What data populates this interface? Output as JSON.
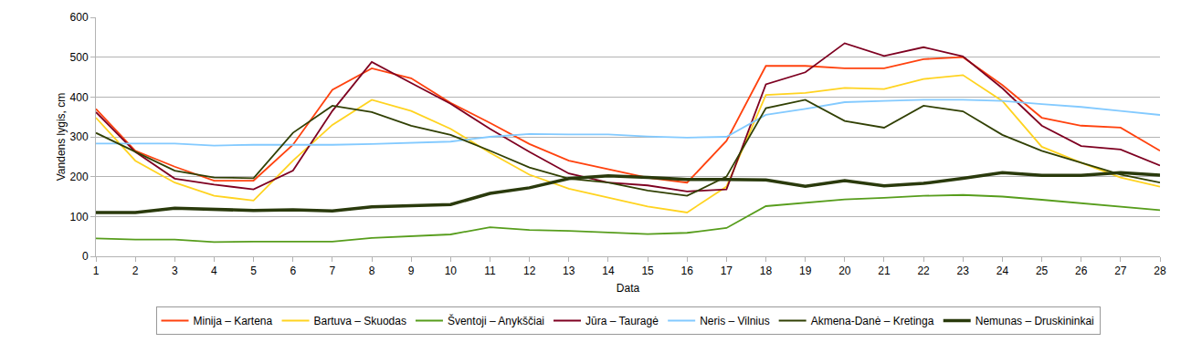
{
  "chart_data": {
    "type": "line",
    "x_label": "Data",
    "y_label": "Vandens lygis, cm",
    "x": [
      1,
      2,
      3,
      4,
      5,
      6,
      7,
      8,
      9,
      10,
      11,
      12,
      13,
      14,
      15,
      16,
      17,
      18,
      19,
      20,
      21,
      22,
      23,
      24,
      25,
      26,
      27,
      28
    ],
    "xlim": [
      1,
      28
    ],
    "xticks": [
      1,
      2,
      3,
      4,
      5,
      6,
      7,
      8,
      9,
      10,
      11,
      12,
      13,
      14,
      15,
      16,
      17,
      18,
      19,
      20,
      21,
      22,
      23,
      24,
      25,
      26,
      27,
      28
    ],
    "ylim": [
      0,
      600
    ],
    "yticks": [
      0,
      100,
      200,
      300,
      400,
      500,
      600
    ],
    "grid": "y",
    "legend": "bottom",
    "series": [
      {
        "name": "Minija – Kartena",
        "color": "#ff420e",
        "values": [
          370,
          265,
          225,
          190,
          190,
          280,
          418,
          472,
          447,
          385,
          335,
          282,
          240,
          218,
          197,
          185,
          290,
          478,
          478,
          472,
          472,
          495,
          500,
          430,
          348,
          328,
          323,
          265
        ]
      },
      {
        "name": "Bartuva – Skuodas",
        "color": "#ffd320",
        "values": [
          348,
          240,
          185,
          152,
          140,
          240,
          330,
          393,
          365,
          320,
          260,
          205,
          170,
          148,
          125,
          110,
          175,
          405,
          410,
          423,
          420,
          445,
          455,
          390,
          275,
          235,
          198,
          175
        ]
      },
      {
        "name": "Šventoji – Anykščiai",
        "color": "#579d1c",
        "values": [
          45,
          42,
          42,
          36,
          37,
          37,
          37,
          46,
          50,
          55,
          73,
          66,
          64,
          60,
          56,
          59,
          71,
          126,
          135,
          143,
          147,
          152,
          154,
          150,
          142,
          133,
          125,
          116
        ]
      },
      {
        "name": "Jūra – Tauragė",
        "color": "#7e0021",
        "values": [
          362,
          262,
          195,
          180,
          168,
          215,
          365,
          488,
          435,
          383,
          320,
          262,
          208,
          185,
          178,
          163,
          168,
          432,
          462,
          535,
          503,
          525,
          502,
          422,
          328,
          277,
          268,
          228
        ]
      },
      {
        "name": "Neris – Vilnius",
        "color": "#83caff",
        "values": [
          283,
          283,
          283,
          278,
          280,
          280,
          280,
          282,
          285,
          288,
          300,
          307,
          306,
          306,
          301,
          298,
          300,
          355,
          370,
          387,
          390,
          393,
          393,
          390,
          382,
          375,
          365,
          355
        ]
      },
      {
        "name": "Akmena-Danė – Kretinga",
        "color": "#314004",
        "values": [
          310,
          262,
          215,
          198,
          196,
          310,
          378,
          362,
          328,
          305,
          265,
          223,
          195,
          185,
          165,
          152,
          200,
          372,
          393,
          340,
          323,
          378,
          364,
          305,
          265,
          235,
          205,
          185
        ]
      },
      {
        "name": "Nemunas – Druskininkai",
        "color": "#2a3a0c",
        "line_style": "thick",
        "values": [
          110,
          110,
          121,
          119,
          115,
          117,
          114,
          124,
          127,
          130,
          158,
          172,
          195,
          202,
          198,
          193,
          193,
          192,
          176,
          190,
          177,
          183,
          196,
          210,
          203,
          203,
          210,
          204
        ]
      }
    ]
  }
}
